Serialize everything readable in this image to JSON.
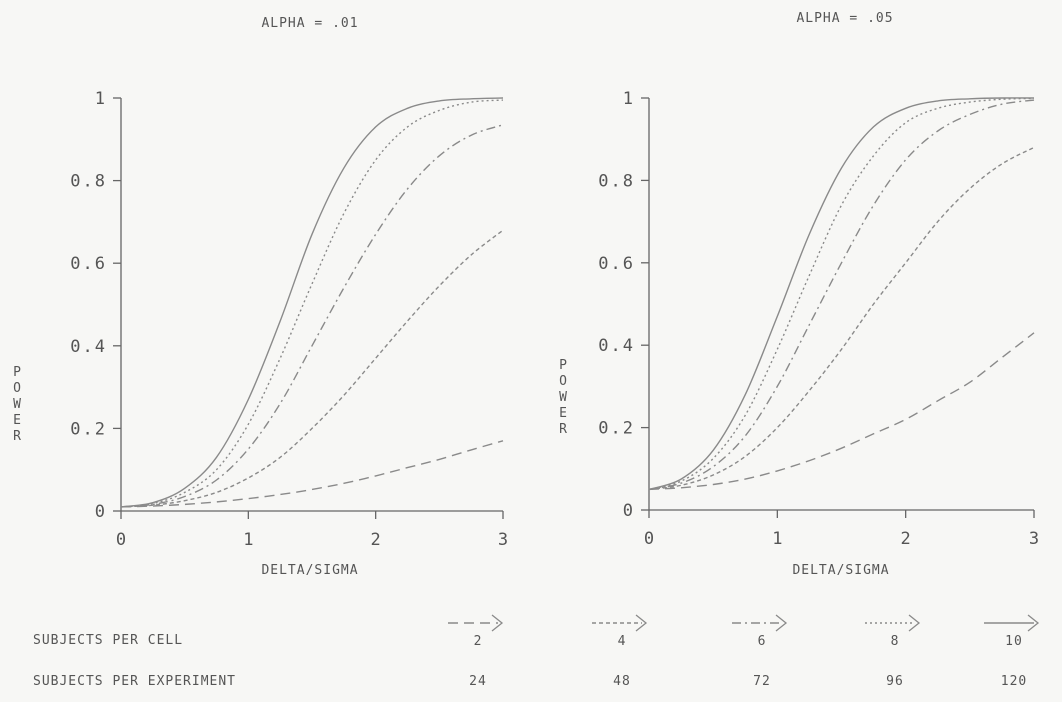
{
  "chart_data": [
    {
      "type": "line",
      "title": "ALPHA = .01",
      "xlabel": "DELTA/SIGMA",
      "ylabel": "POWER",
      "xlim": [
        0,
        3
      ],
      "ylim": [
        0,
        1
      ],
      "x_ticks": [
        "0",
        "1",
        "2",
        "3"
      ],
      "y_ticks": [
        "0",
        "0.2",
        "0.4",
        "0.6",
        "0.8",
        "1"
      ],
      "x": [
        0,
        0.25,
        0.5,
        0.75,
        1.0,
        1.25,
        1.5,
        1.75,
        2.0,
        2.25,
        2.5,
        2.75,
        3.0
      ],
      "series": [
        {
          "name": "2",
          "values": [
            0.01,
            0.012,
            0.016,
            0.022,
            0.03,
            0.04,
            0.052,
            0.067,
            0.085,
            0.105,
            0.125,
            0.148,
            0.17
          ]
        },
        {
          "name": "4",
          "values": [
            0.01,
            0.014,
            0.025,
            0.045,
            0.08,
            0.13,
            0.2,
            0.28,
            0.37,
            0.46,
            0.545,
            0.62,
            0.68
          ]
        },
        {
          "name": "6",
          "values": [
            0.01,
            0.016,
            0.035,
            0.075,
            0.15,
            0.26,
            0.4,
            0.54,
            0.67,
            0.78,
            0.86,
            0.91,
            0.935
          ]
        },
        {
          "name": "8",
          "values": [
            0.01,
            0.018,
            0.045,
            0.1,
            0.21,
            0.37,
            0.55,
            0.72,
            0.85,
            0.93,
            0.97,
            0.99,
            0.995
          ]
        },
        {
          "name": "10",
          "values": [
            0.01,
            0.02,
            0.055,
            0.13,
            0.27,
            0.46,
            0.67,
            0.83,
            0.93,
            0.975,
            0.993,
            0.998,
            1.0
          ]
        }
      ]
    },
    {
      "type": "line",
      "title": "ALPHA = .05",
      "xlabel": "DELTA/SIGMA",
      "ylabel": "POWER",
      "xlim": [
        0,
        3
      ],
      "ylim": [
        0,
        1
      ],
      "x_ticks": [
        "0",
        "1",
        "2",
        "3"
      ],
      "y_ticks": [
        "0",
        "0.2",
        "0.4",
        "0.6",
        "0.8",
        "1"
      ],
      "x": [
        0,
        0.25,
        0.5,
        0.75,
        1.0,
        1.25,
        1.5,
        1.75,
        2.0,
        2.25,
        2.5,
        2.75,
        3.0
      ],
      "series": [
        {
          "name": "2",
          "values": [
            0.05,
            0.054,
            0.062,
            0.075,
            0.095,
            0.12,
            0.15,
            0.185,
            0.22,
            0.265,
            0.31,
            0.37,
            0.43
          ]
        },
        {
          "name": "4",
          "values": [
            0.05,
            0.06,
            0.085,
            0.13,
            0.2,
            0.29,
            0.39,
            0.5,
            0.6,
            0.7,
            0.78,
            0.84,
            0.88
          ]
        },
        {
          "name": "6",
          "values": [
            0.05,
            0.065,
            0.105,
            0.18,
            0.3,
            0.45,
            0.6,
            0.74,
            0.85,
            0.92,
            0.96,
            0.985,
            0.995
          ]
        },
        {
          "name": "8",
          "values": [
            0.05,
            0.07,
            0.125,
            0.23,
            0.39,
            0.57,
            0.74,
            0.86,
            0.94,
            0.975,
            0.99,
            0.997,
            0.999
          ]
        },
        {
          "name": "10",
          "values": [
            0.05,
            0.075,
            0.145,
            0.28,
            0.47,
            0.67,
            0.83,
            0.93,
            0.975,
            0.993,
            0.998,
            1.0,
            1.0
          ]
        }
      ]
    }
  ],
  "legend": {
    "per_cell_label": "SUBJECTS PER CELL",
    "per_experiment_label": "SUBJECTS PER EXPERIMENT",
    "per_cell": [
      "2",
      "4",
      "6",
      "8",
      "10"
    ],
    "per_experiment": [
      "24",
      "48",
      "72",
      "96",
      "120"
    ]
  },
  "colors": {
    "line": "#8a8a8a",
    "axis": "#666666",
    "text": "#555555",
    "background": "#f7f7f5"
  }
}
